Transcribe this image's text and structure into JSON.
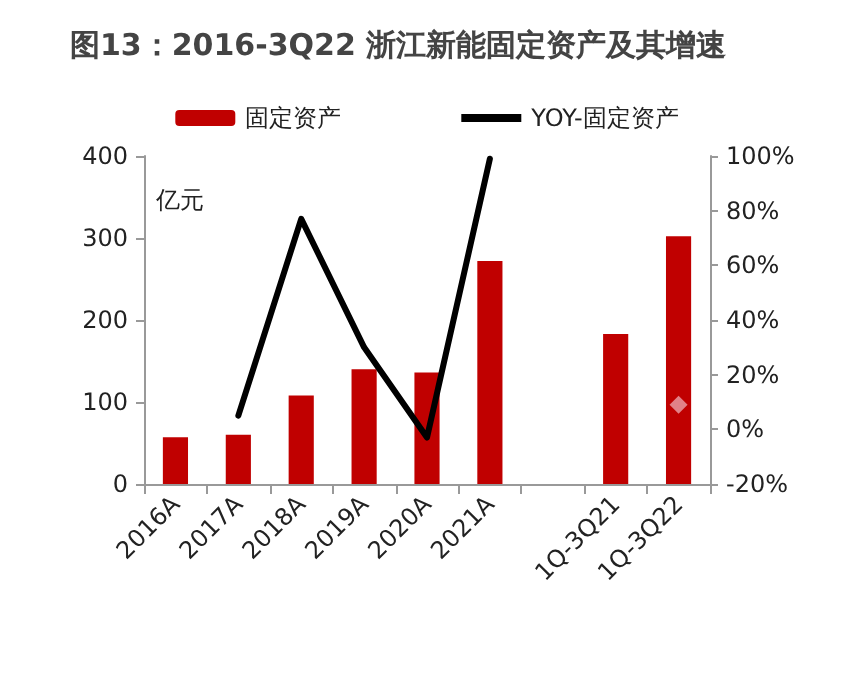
{
  "chart_data": {
    "type": "bar",
    "title": "图13：2016-3Q22 浙江新能固定资产及其增速",
    "ylabel": "亿元",
    "categories": [
      "2016A",
      "2017A",
      "2018A",
      "2019A",
      "2020A",
      "2021A",
      null,
      "1Q-3Q21",
      "1Q-3Q22"
    ],
    "series": [
      {
        "name": "固定资产",
        "color": "#c00000",
        "values": [
          57,
          60,
          108,
          140,
          136,
          272,
          null,
          183,
          302
        ]
      },
      {
        "name": "YOY-固定资产",
        "type": "line",
        "axis": "y2",
        "color": "#000000",
        "marker": "none",
        "values": [
          null,
          5,
          77,
          30,
          -3,
          99,
          null,
          null,
          null
        ]
      },
      {
        "type": "scatter",
        "axis": "y2",
        "color": "#e8a3aa",
        "marker": "diamond",
        "values": [
          null,
          null,
          null,
          null,
          null,
          null,
          null,
          null,
          9
        ]
      }
    ],
    "ylim": [
      0,
      400
    ],
    "yticks": [
      0,
      100,
      200,
      300,
      400
    ],
    "y2lim": [
      -20,
      100
    ],
    "y2ticks": [
      {
        "value": -20,
        "label": "-20%"
      },
      {
        "value": 0,
        "label": "0%"
      },
      {
        "value": 20,
        "label": "20%"
      },
      {
        "value": 40,
        "label": "40%"
      },
      {
        "value": 60,
        "label": "60%"
      },
      {
        "value": 80,
        "label": "80%"
      },
      {
        "value": 100,
        "label": "100%"
      }
    ],
    "grid": false,
    "legend": "top"
  }
}
